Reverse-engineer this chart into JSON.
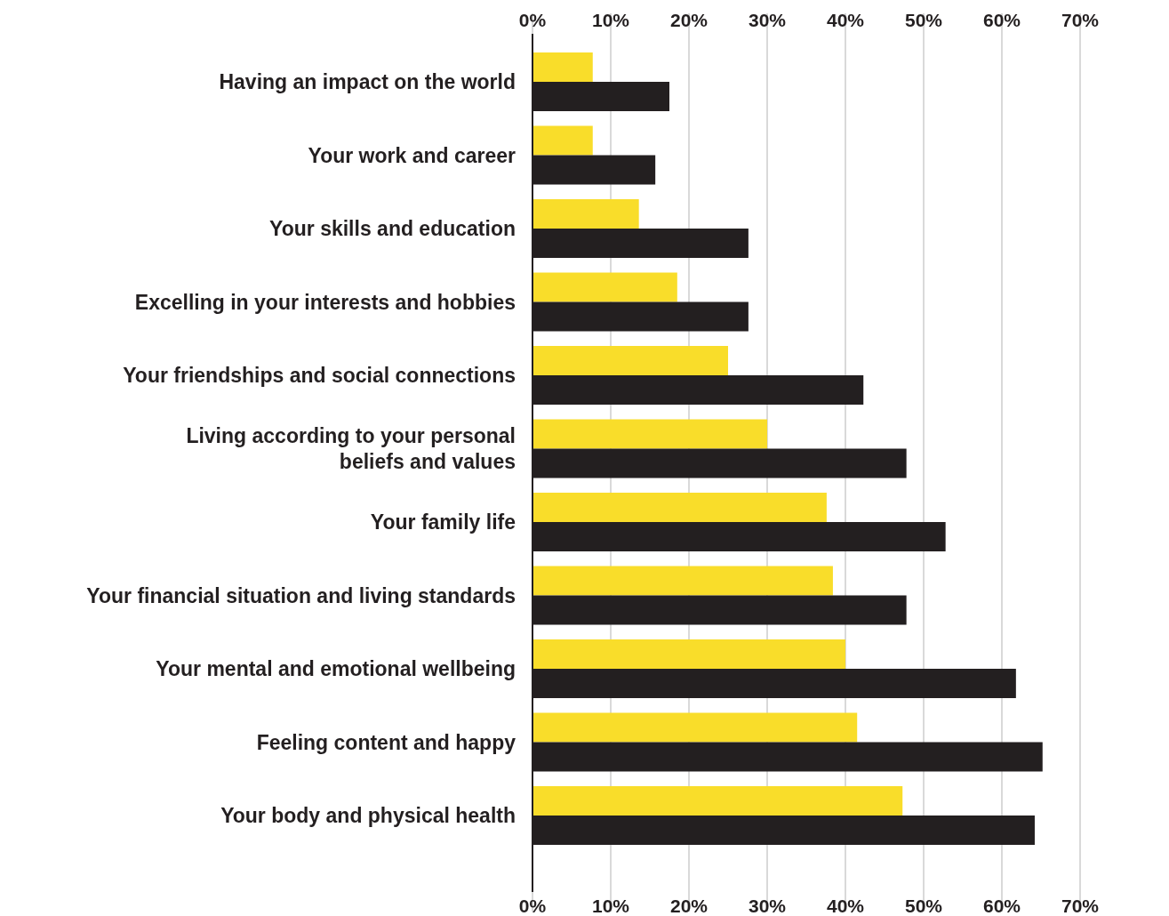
{
  "chart_data": {
    "type": "bar",
    "orientation": "horizontal",
    "categories": [
      "Having an impact on the world",
      "Your work and career",
      "Your skills and education",
      "Excelling in your interests and hobbies",
      "Your friendships and social connections",
      "Living according to your personal beliefs and values",
      "Your family life",
      "Your financial situation and living standards",
      "Your mental and emotional wellbeing",
      "Feeling content and happy",
      "Your body and physical health"
    ],
    "series": [
      {
        "color": "#f9dd2a",
        "values": [
          7.7,
          7.7,
          13.6,
          18.5,
          25,
          30,
          37.6,
          38.4,
          40,
          41.5,
          47.3
        ]
      },
      {
        "color": "#231f20",
        "values": [
          17.5,
          15.7,
          27.6,
          27.6,
          42.3,
          47.8,
          52.8,
          47.8,
          61.8,
          65.2,
          64.2
        ]
      }
    ],
    "xlim": [
      0,
      70
    ],
    "xticks": [
      {
        "value": 0,
        "label": "0%"
      },
      {
        "value": 10,
        "label": "10%"
      },
      {
        "value": 20,
        "label": "20%"
      },
      {
        "value": 30,
        "label": "30%"
      },
      {
        "value": 40,
        "label": "40%"
      },
      {
        "value": 50,
        "label": "50%"
      },
      {
        "value": 60,
        "label": "60%"
      },
      {
        "value": 70,
        "label": "70%"
      }
    ],
    "x2lim": [
      0,
      70
    ],
    "x2ticks": [
      {
        "value": 0,
        "label": "0%"
      },
      {
        "value": 10,
        "label": "10%"
      },
      {
        "value": 20,
        "label": "20%"
      },
      {
        "value": 30,
        "label": "30%"
      },
      {
        "value": 40,
        "label": "40%"
      },
      {
        "value": 50,
        "label": "50%"
      },
      {
        "value": 60,
        "label": "60%"
      },
      {
        "value": 70,
        "label": "70%"
      }
    ],
    "grid": "x"
  }
}
